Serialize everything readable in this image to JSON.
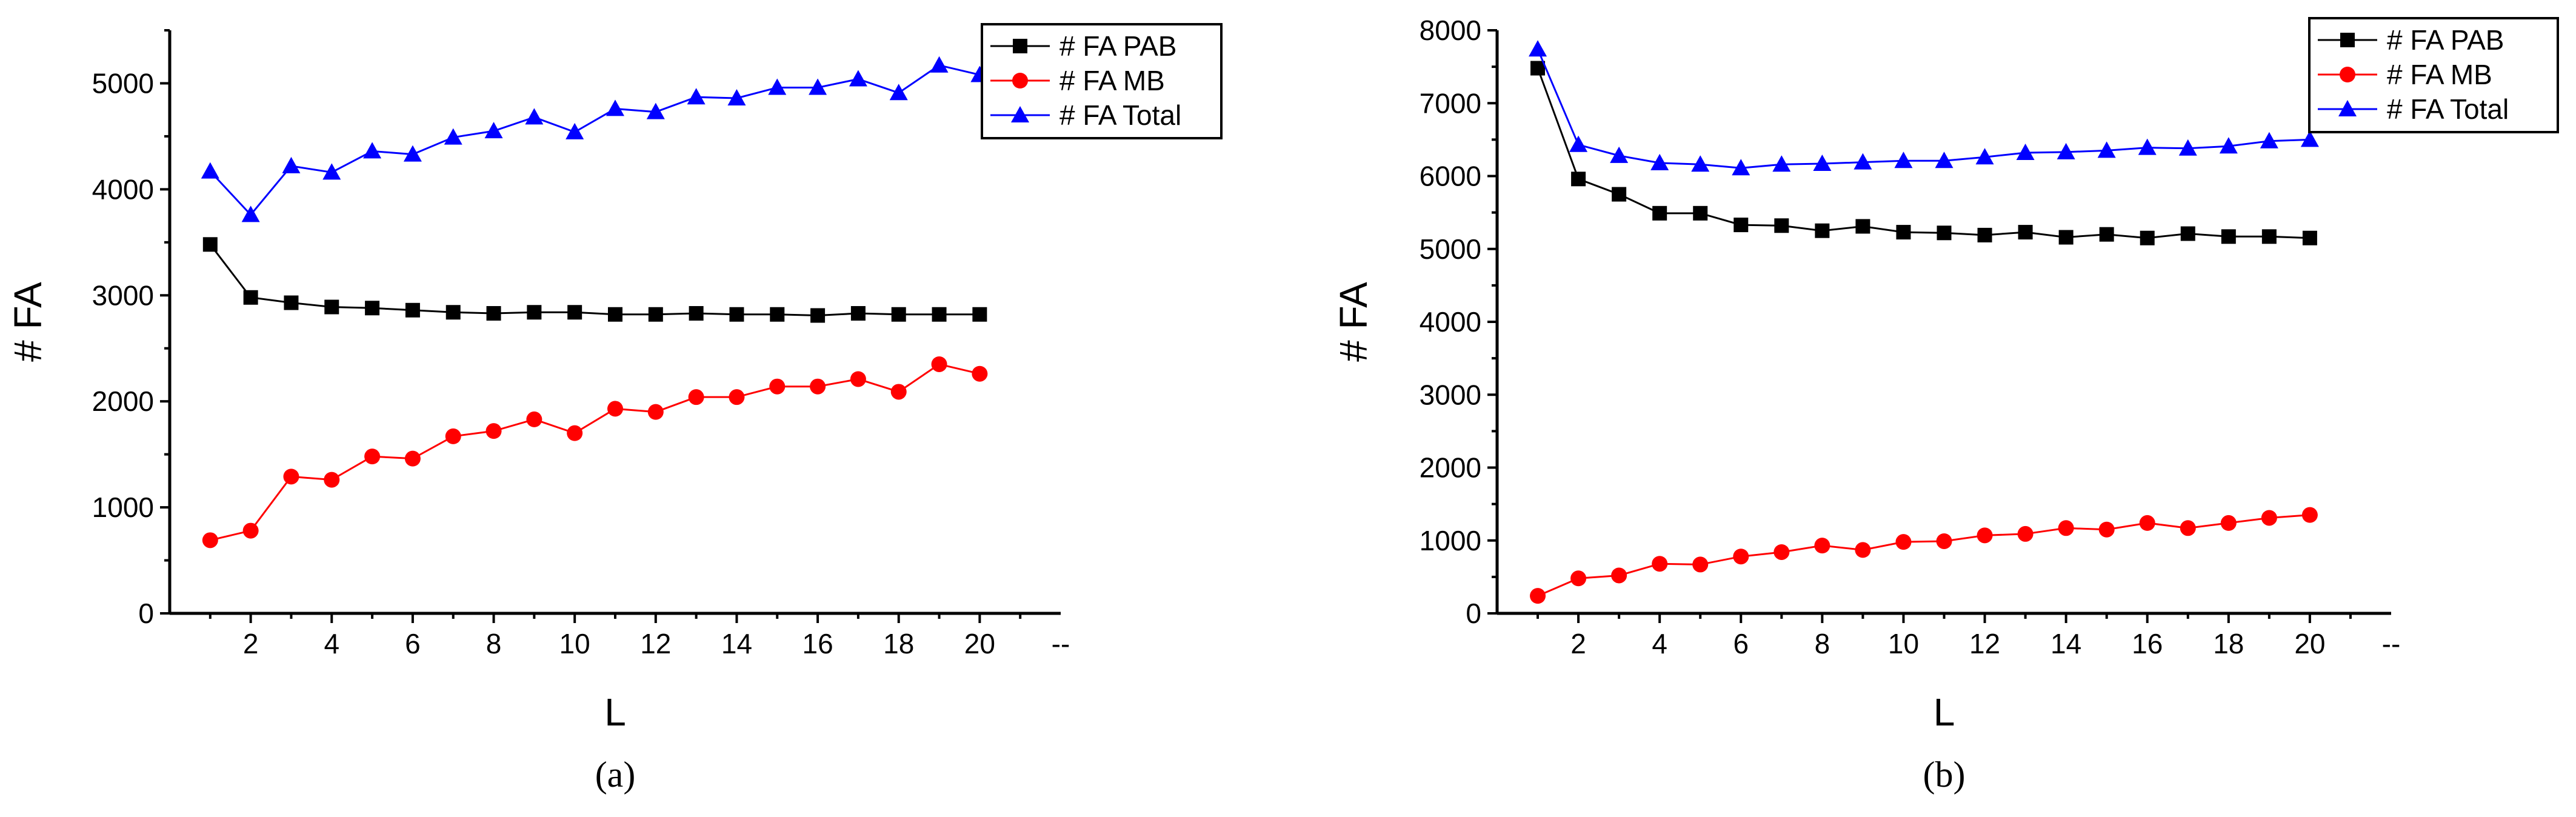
{
  "chart_data": [
    {
      "type": "line",
      "panel_label": "(a)",
      "xlabel": "L",
      "ylabel": "# FA",
      "xlim": [
        0,
        22
      ],
      "ylim": [
        0,
        5500
      ],
      "x_ticks": [
        2,
        4,
        6,
        8,
        10,
        12,
        14,
        16,
        18,
        20
      ],
      "x_extra_tick_label": "--",
      "y_ticks": [
        0,
        1000,
        2000,
        3000,
        4000,
        5000
      ],
      "legend_position": "top-right",
      "x": [
        1,
        2,
        3,
        4,
        5,
        6,
        7,
        8,
        9,
        10,
        11,
        12,
        13,
        14,
        15,
        16,
        17,
        18,
        19,
        20
      ],
      "series": [
        {
          "name": "# FA PAB",
          "color": "#000000",
          "marker": "square",
          "values": [
            3480,
            2980,
            2930,
            2890,
            2880,
            2860,
            2840,
            2830,
            2840,
            2840,
            2820,
            2820,
            2830,
            2820,
            2820,
            2810,
            2830,
            2820,
            2820,
            2820
          ]
        },
        {
          "name": "# FA MB",
          "color": "#ff0000",
          "marker": "circle",
          "values": [
            690,
            780,
            1290,
            1260,
            1480,
            1460,
            1670,
            1720,
            1830,
            1700,
            1930,
            1900,
            2040,
            2040,
            2140,
            2140,
            2210,
            2090,
            2350,
            2260
          ]
        },
        {
          "name": "# FA Total",
          "color": "#0000ff",
          "marker": "triangle",
          "values": [
            4170,
            3760,
            4220,
            4160,
            4360,
            4330,
            4490,
            4550,
            4680,
            4540,
            4760,
            4730,
            4870,
            4860,
            4960,
            4960,
            5040,
            4910,
            5170,
            5080
          ]
        }
      ]
    },
    {
      "type": "line",
      "panel_label": "(b)",
      "xlabel": "L",
      "ylabel": "# FA",
      "xlim": [
        0,
        22
      ],
      "ylim": [
        0,
        8000
      ],
      "x_ticks": [
        2,
        4,
        6,
        8,
        10,
        12,
        14,
        16,
        18,
        20
      ],
      "x_extra_tick_label": "--",
      "y_ticks": [
        0,
        1000,
        2000,
        3000,
        4000,
        5000,
        6000,
        7000,
        8000
      ],
      "legend_position": "top-right",
      "x": [
        1,
        2,
        3,
        4,
        5,
        6,
        7,
        8,
        9,
        10,
        11,
        12,
        13,
        14,
        15,
        16,
        17,
        18,
        19,
        20
      ],
      "series": [
        {
          "name": "# FA PAB",
          "color": "#000000",
          "marker": "square",
          "values": [
            7480,
            5960,
            5750,
            5490,
            5490,
            5330,
            5320,
            5250,
            5310,
            5230,
            5220,
            5190,
            5230,
            5160,
            5200,
            5150,
            5210,
            5170,
            5170,
            5150
          ]
        },
        {
          "name": "# FA MB",
          "color": "#ff0000",
          "marker": "circle",
          "values": [
            240,
            480,
            520,
            680,
            670,
            780,
            840,
            930,
            870,
            980,
            990,
            1070,
            1090,
            1170,
            1150,
            1240,
            1170,
            1240,
            1310,
            1350
          ]
        },
        {
          "name": "# FA Total",
          "color": "#0000ff",
          "marker": "triangle",
          "values": [
            7740,
            6430,
            6280,
            6180,
            6160,
            6110,
            6160,
            6170,
            6190,
            6210,
            6210,
            6260,
            6320,
            6330,
            6350,
            6390,
            6380,
            6410,
            6480,
            6500
          ]
        }
      ]
    }
  ]
}
